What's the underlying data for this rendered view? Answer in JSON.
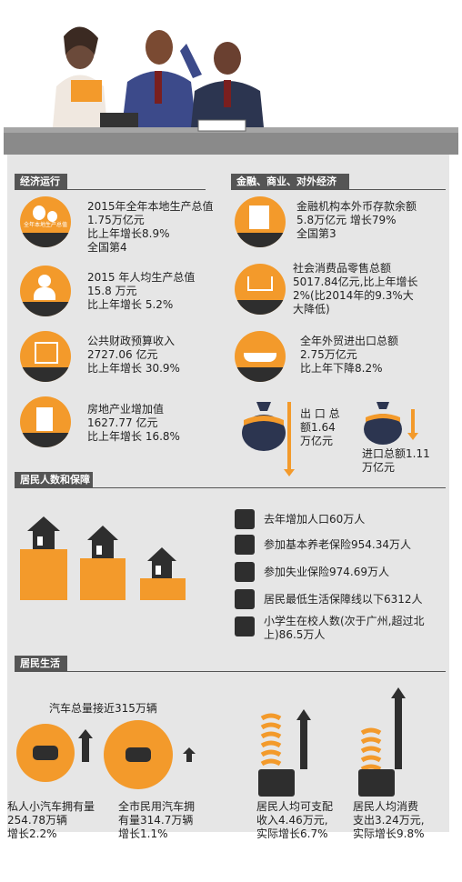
{
  "sections": {
    "economy": "经济运行",
    "finance": "金融、商业、对外经济",
    "population": "居民人数和保障",
    "life": "居民生活"
  },
  "economy": {
    "gdp_icon_label": "全年本地生产总值",
    "gdp": "2015年全年本地生产总值\n1.75万亿元\n比上年增长8.9%\n全国第4",
    "per_capita": "2015 年人均生产总值\n15.8 万元\n比上年增长 5.2%",
    "budget": "公共财政预算收入\n2727.06 亿元\n比上年增长 30.9%",
    "real_estate": "房地产业增加值\n1627.77 亿元\n比上年增长 16.8%"
  },
  "finance": {
    "deposits": "金融机构本外币存款余额\n5.8万亿元   增长79%\n全国第3",
    "retail": "社会消费品零售总额\n5017.84亿元,比上年增长\n2%(比2014年的9.3%大\n大降低)",
    "trade": "全年外贸进出口总额\n2.75万亿元\n比上年下降8.2%",
    "export": "出 口 总\n额1.64\n万亿元",
    "import": "进口总额1.11\n万亿元"
  },
  "population": {
    "items": [
      "去年增加人口60万人",
      "参加基本养老保险954.34万人",
      "参加失业保险974.69万人",
      "居民最低生活保障线以下6312人",
      "小学生在校人数(次于广州,超过北\n上)86.5万人"
    ]
  },
  "life": {
    "cars_total": "汽车总量接近315万辆",
    "private_cars": "私人小汽车拥有量\n254.78万辆\n增长2.2%",
    "civil_cars": "全市民用汽车拥\n有量314.7万辆\n增长1.1%",
    "income": "居民人均可支配\n收入4.46万元,\n实际增长6.7%",
    "consumption": "居民人均消费\n支出3.24万元,\n实际增长9.8%"
  },
  "colors": {
    "accent": "#f39a2b",
    "dark": "#2e2e2e",
    "navy": "#2c3550",
    "panel": "#e6e6e6"
  }
}
